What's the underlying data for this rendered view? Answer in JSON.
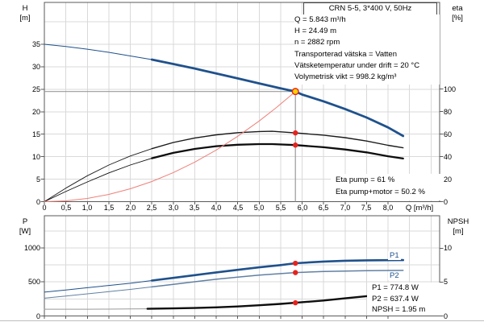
{
  "header": {
    "title": "CRN 5-5, 3*400 V, 50Hz"
  },
  "info": {
    "lines": [
      "Q = 5.843 m³/h",
      "H = 24.49 m",
      "n = 2882 rpm",
      "Transporterad vätska = Vatten",
      "Vätsketemperatur under drift = 20 °C",
      "Volymetrisk vikt = 998.2 kg/m³"
    ]
  },
  "eta_box": {
    "lines": [
      "Eta pump = 61 %",
      "Eta pump+motor = 50.2 %"
    ]
  },
  "result_box": {
    "lines": [
      "P1 = 774.8 W",
      "P2 = 637.4 W",
      "NPSH = 1.95 m"
    ]
  },
  "curve_labels": {
    "p1": "P1",
    "p2": "P2"
  },
  "axes": {
    "top": {
      "left_title": "H",
      "left_unit": "[m]",
      "right_title": "eta",
      "right_unit": "[%]",
      "x_title": "Q [m³/h]"
    },
    "bottom": {
      "left_title": "P",
      "left_unit": "[W]",
      "right_title": "NPSH",
      "right_unit": "[m]"
    }
  },
  "colors": {
    "curve_blue": "#1f518c",
    "curve_blue_light": "#6180a4",
    "curve_black": "#0d0d0d",
    "curve_gray_lead": "#999999",
    "system_curve_red": "#ee8078",
    "dot_red": "#e8211d",
    "duty_yellow": "#ffd400",
    "grid": "#d9d9d9",
    "axis": "#5a5a5a",
    "duty_line": "#9a9a9a"
  },
  "chart_data": {
    "type": "line",
    "x_axis": {
      "ticks": [
        0,
        0.5,
        1,
        1.5,
        2,
        2.5,
        3,
        3.5,
        4,
        4.5,
        5,
        5.5,
        6,
        6.5,
        7,
        7.5,
        8
      ],
      "range": [
        0,
        9.2
      ],
      "grid_step": 0.5
    },
    "duty_point": {
      "Q": 5.843,
      "H": 24.49
    },
    "top": {
      "ylim_H": [
        0,
        44.3
      ],
      "ylim_eta": [
        0,
        176.8
      ],
      "h_ticks": [
        0,
        5,
        10,
        15,
        20,
        25,
        30,
        35
      ],
      "eta_ticks": [
        0,
        20,
        40,
        60,
        80,
        100
      ],
      "h_grid_step": 5,
      "series": [
        {
          "name": "QH-curve",
          "axis": "H",
          "color": "#1f518c",
          "width": [
            1,
            2.8
          ],
          "bold_from": 2.5,
          "points": [
            [
              0,
              35.0
            ],
            [
              0.5,
              34.5
            ],
            [
              1,
              33.9
            ],
            [
              1.5,
              33.2
            ],
            [
              2,
              32.4
            ],
            [
              2.5,
              31.6
            ],
            [
              3,
              30.6
            ],
            [
              3.5,
              29.6
            ],
            [
              4,
              28.5
            ],
            [
              4.5,
              27.4
            ],
            [
              5,
              26.3
            ],
            [
              5.5,
              25.2
            ],
            [
              5.843,
              24.49
            ],
            [
              6,
              23.8
            ],
            [
              6.5,
              22.3
            ],
            [
              7,
              20.6
            ],
            [
              7.5,
              18.7
            ],
            [
              8,
              16.5
            ],
            [
              8.35,
              14.6
            ]
          ]
        },
        {
          "name": "eta-pump",
          "axis": "eta",
          "color": "#1a1a1a",
          "width": [
            0.9,
            1.4
          ],
          "bold_from": 2.5,
          "points": [
            [
              0,
              0
            ],
            [
              0.5,
              12
            ],
            [
              1,
              23
            ],
            [
              1.5,
              32.5
            ],
            [
              2,
              40.5
            ],
            [
              2.5,
              47
            ],
            [
              3,
              52.5
            ],
            [
              3.5,
              56.5
            ],
            [
              4,
              59.3
            ],
            [
              4.5,
              61.2
            ],
            [
              5,
              62.2
            ],
            [
              5.3,
              62.4
            ],
            [
              5.843,
              61
            ],
            [
              6.5,
              59
            ],
            [
              7,
              56.8
            ],
            [
              7.5,
              53.8
            ],
            [
              8,
              50
            ],
            [
              8.35,
              47.8
            ]
          ]
        },
        {
          "name": "eta-pump-motor",
          "axis": "eta",
          "color": "#0d0d0d",
          "width": [
            0.9,
            2.3
          ],
          "bold_from": 2.5,
          "points": [
            [
              0,
              0
            ],
            [
              0.5,
              9
            ],
            [
              1,
              17.5
            ],
            [
              1.5,
              25.5
            ],
            [
              2,
              32.5
            ],
            [
              2.5,
              38.5
            ],
            [
              3,
              43.3
            ],
            [
              3.5,
              46.8
            ],
            [
              4,
              49.2
            ],
            [
              4.5,
              50.5
            ],
            [
              5,
              51.1
            ],
            [
              5.3,
              51.1
            ],
            [
              5.843,
              50.2
            ],
            [
              6.5,
              48.3
            ],
            [
              7,
              46.3
            ],
            [
              7.5,
              43.7
            ],
            [
              8,
              40.3
            ],
            [
              8.35,
              38.3
            ]
          ]
        },
        {
          "name": "system-curve",
          "axis": "H",
          "color": "#ee8078",
          "width": [
            1,
            1
          ],
          "bold_from": null,
          "points": [
            [
              0,
              0
            ],
            [
              0.5,
              0.18
            ],
            [
              1,
              0.72
            ],
            [
              1.5,
              1.61
            ],
            [
              2,
              2.87
            ],
            [
              2.5,
              4.48
            ],
            [
              3,
              6.46
            ],
            [
              3.5,
              8.79
            ],
            [
              4,
              11.48
            ],
            [
              4.5,
              14.53
            ],
            [
              5,
              17.94
            ],
            [
              5.4,
              20.92
            ],
            [
              5.843,
              24.49
            ]
          ]
        }
      ],
      "dots": [
        {
          "axis": "eta",
          "q": 5.843,
          "v": 61
        },
        {
          "axis": "eta",
          "q": 5.843,
          "v": 50.2
        }
      ]
    },
    "bottom": {
      "ylim_P": [
        0,
        1473
      ],
      "ylim_NPSH": [
        0,
        14.8
      ],
      "p_ticks": [
        0,
        500,
        1000
      ],
      "npsh_ticks": [
        0,
        5,
        10
      ],
      "p_grid_step": 250,
      "series": [
        {
          "name": "P1-curve",
          "axis": "P",
          "color": "#1f518c",
          "width": [
            1,
            2.6
          ],
          "bold_from": 2.5,
          "points": [
            [
              0,
              350
            ],
            [
              0.5,
              382
            ],
            [
              1,
              415
            ],
            [
              1.5,
              448
            ],
            [
              2,
              480
            ],
            [
              2.5,
              520
            ],
            [
              3,
              560
            ],
            [
              3.5,
              600
            ],
            [
              4,
              640
            ],
            [
              4.5,
              678
            ],
            [
              5,
              715
            ],
            [
              5.5,
              748
            ],
            [
              5.843,
              774.8
            ],
            [
              6.5,
              800
            ],
            [
              7,
              812
            ],
            [
              7.5,
              818
            ],
            [
              8,
              820
            ],
            [
              8.35,
              821
            ]
          ]
        },
        {
          "name": "P2-curve",
          "axis": "P",
          "color": "#6180a4",
          "width": [
            1,
            1.5
          ],
          "bold_from": 2.5,
          "points": [
            [
              0,
              262
            ],
            [
              0.5,
              293
            ],
            [
              1,
              325
            ],
            [
              1.5,
              357
            ],
            [
              2,
              390
            ],
            [
              2.5,
              427
            ],
            [
              3,
              465
            ],
            [
              3.5,
              503
            ],
            [
              4,
              540
            ],
            [
              4.5,
              572
            ],
            [
              5,
              601
            ],
            [
              5.5,
              622
            ],
            [
              5.843,
              637.4
            ],
            [
              6.5,
              653
            ],
            [
              7,
              660
            ],
            [
              7.5,
              665
            ],
            [
              8,
              668
            ],
            [
              8.35,
              670
            ]
          ]
        },
        {
          "name": "NPSH-curve",
          "axis": "NPSH",
          "color": "#0d0d0d",
          "color_thin": "#999999",
          "width": [
            1,
            2.4
          ],
          "bold_from": 2.4,
          "points": [
            [
              0,
              1.0
            ],
            [
              0.5,
              1.0
            ],
            [
              1,
              1.0
            ],
            [
              1.5,
              1.01
            ],
            [
              2,
              1.03
            ],
            [
              2.4,
              1.06
            ],
            [
              3,
              1.12
            ],
            [
              3.5,
              1.18
            ],
            [
              4,
              1.27
            ],
            [
              4.5,
              1.4
            ],
            [
              5,
              1.58
            ],
            [
              5.5,
              1.78
            ],
            [
              5.843,
              1.95
            ],
            [
              6.5,
              2.28
            ],
            [
              7,
              2.6
            ],
            [
              7.5,
              2.92
            ],
            [
              8,
              3.2
            ],
            [
              8.35,
              3.38
            ]
          ]
        }
      ],
      "dots": [
        {
          "axis": "P",
          "q": 5.843,
          "v": 774.8
        },
        {
          "axis": "P",
          "q": 5.843,
          "v": 637.4
        },
        {
          "axis": "NPSH",
          "q": 5.843,
          "v": 1.95
        }
      ]
    }
  }
}
